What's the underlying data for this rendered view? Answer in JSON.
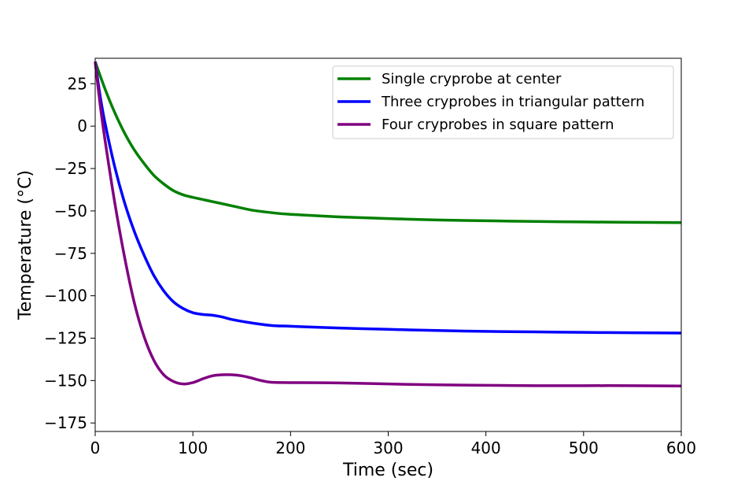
{
  "chart_data": {
    "type": "line",
    "xlabel": "Time (sec)",
    "ylabel": "Temperature (°C)",
    "xlim": [
      0,
      600
    ],
    "ylim": [
      -180,
      40
    ],
    "xticks": [
      0,
      100,
      200,
      300,
      400,
      500,
      600
    ],
    "yticks": [
      25,
      0,
      -25,
      -50,
      -75,
      -100,
      -125,
      -150,
      -175
    ],
    "xtick_labels": [
      "0",
      "100",
      "200",
      "300",
      "400",
      "500",
      "600"
    ],
    "ytick_labels": [
      "25",
      "0",
      "−25",
      "−50",
      "−75",
      "−100",
      "−125",
      "−150",
      "−175"
    ],
    "grid": false,
    "legend_position": "top-right",
    "series": [
      {
        "name": "Single cryprobe at center",
        "color": "#008000",
        "x": [
          0,
          10,
          20,
          30,
          40,
          50,
          60,
          70,
          80,
          90,
          100,
          120,
          140,
          160,
          180,
          200,
          250,
          300,
          350,
          400,
          450,
          500,
          550,
          600
        ],
        "y": [
          38,
          22,
          8,
          -4,
          -14,
          -22,
          -29,
          -34,
          -38,
          -40.5,
          -42,
          -44.5,
          -47,
          -49.5,
          -51,
          -52,
          -53.5,
          -54.5,
          -55.3,
          -55.8,
          -56.2,
          -56.5,
          -56.7,
          -56.9
        ]
      },
      {
        "name": "Three cryprobes in triangular pattern",
        "color": "#0000ff",
        "x": [
          0,
          5,
          10,
          20,
          30,
          40,
          50,
          60,
          70,
          80,
          90,
          100,
          110,
          120,
          130,
          140,
          160,
          180,
          200,
          250,
          300,
          350,
          400,
          450,
          500,
          550,
          600
        ],
        "y": [
          38,
          18,
          2,
          -24,
          -45,
          -62,
          -76,
          -88,
          -97,
          -103.5,
          -107.5,
          -110,
          -111,
          -111.5,
          -112.5,
          -114,
          -116,
          -117.5,
          -118,
          -119,
          -119.8,
          -120.5,
          -121,
          -121.3,
          -121.6,
          -121.8,
          -122
        ]
      },
      {
        "name": "Four cryprobes in square pattern",
        "color": "#800080",
        "x": [
          0,
          5,
          10,
          20,
          30,
          40,
          50,
          60,
          70,
          80,
          90,
          100,
          110,
          120,
          130,
          140,
          150,
          160,
          170,
          180,
          200,
          250,
          300,
          350,
          400,
          450,
          500,
          550,
          600
        ],
        "y": [
          38,
          13,
          -8,
          -45,
          -77,
          -104,
          -124,
          -138,
          -146.5,
          -150.5,
          -152,
          -151.2,
          -149,
          -147.2,
          -146.6,
          -146.6,
          -147.2,
          -148.5,
          -150,
          -151,
          -151.2,
          -151.4,
          -152,
          -152.5,
          -152.8,
          -153,
          -153,
          -153,
          -153.2
        ]
      }
    ]
  }
}
